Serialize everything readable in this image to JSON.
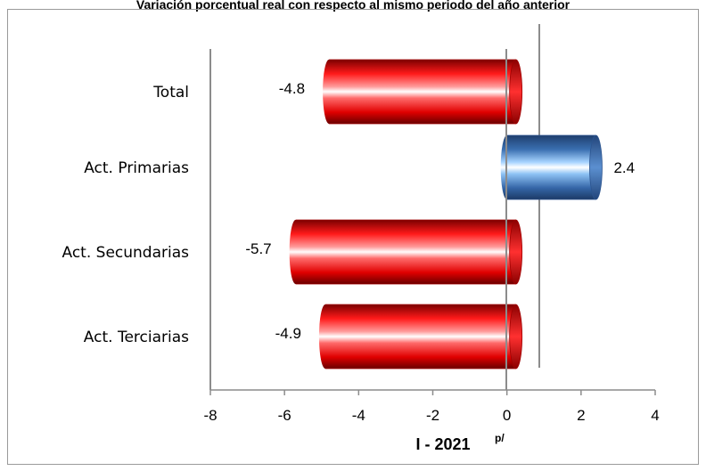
{
  "chart_data": {
    "type": "bar",
    "orientation": "horizontal",
    "title": "Variación porcentual real con respecto al mismo periodo del año anterior",
    "categories": [
      "Total",
      "Act. Primarias",
      "Act. Secundarias",
      "Act. Terciarias"
    ],
    "series": [
      {
        "values": [
          -4.8,
          2.4,
          -5.7,
          -4.9
        ],
        "data_labels": [
          "-4.8",
          "2.4",
          "-5.7",
          "-4.9"
        ]
      }
    ],
    "xlabel": "I - 2021",
    "xlabel_superscript": "p/",
    "xlim": [
      -8,
      4
    ],
    "xticks": [
      -8,
      -6,
      -4,
      -2,
      0,
      2,
      4
    ],
    "xtick_labels": [
      "-8",
      "-6",
      "-4",
      "-2",
      "0",
      "2",
      "4"
    ],
    "grid": false,
    "legend": "none",
    "colors": {
      "negative": "#ff0000",
      "positive": "#4f81bd",
      "axis": "#8c8c8c"
    }
  }
}
